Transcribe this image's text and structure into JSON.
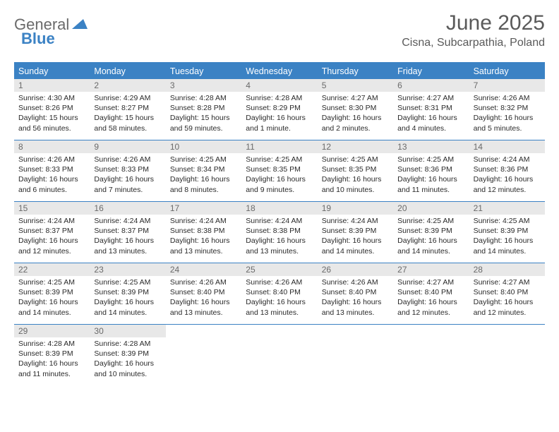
{
  "logo": {
    "general": "General",
    "blue": "Blue"
  },
  "title": "June 2025",
  "location": "Cisna, Subcarpathia, Poland",
  "colors": {
    "accent": "#3b82c4",
    "dow_bg": "#3b82c4",
    "dow_text": "#ffffff",
    "daynum_bg": "#e8e8e8",
    "daynum_text": "#6a6a6a",
    "body_text": "#2a2a2a",
    "title_text": "#5a5a5a",
    "logo_gray": "#6a6a6a",
    "background": "#ffffff"
  },
  "dow": [
    "Sunday",
    "Monday",
    "Tuesday",
    "Wednesday",
    "Thursday",
    "Friday",
    "Saturday"
  ],
  "weeks": [
    [
      {
        "n": "1",
        "sunrise": "Sunrise: 4:30 AM",
        "sunset": "Sunset: 8:26 PM",
        "daylight": "Daylight: 15 hours and 56 minutes."
      },
      {
        "n": "2",
        "sunrise": "Sunrise: 4:29 AM",
        "sunset": "Sunset: 8:27 PM",
        "daylight": "Daylight: 15 hours and 58 minutes."
      },
      {
        "n": "3",
        "sunrise": "Sunrise: 4:28 AM",
        "sunset": "Sunset: 8:28 PM",
        "daylight": "Daylight: 15 hours and 59 minutes."
      },
      {
        "n": "4",
        "sunrise": "Sunrise: 4:28 AM",
        "sunset": "Sunset: 8:29 PM",
        "daylight": "Daylight: 16 hours and 1 minute."
      },
      {
        "n": "5",
        "sunrise": "Sunrise: 4:27 AM",
        "sunset": "Sunset: 8:30 PM",
        "daylight": "Daylight: 16 hours and 2 minutes."
      },
      {
        "n": "6",
        "sunrise": "Sunrise: 4:27 AM",
        "sunset": "Sunset: 8:31 PM",
        "daylight": "Daylight: 16 hours and 4 minutes."
      },
      {
        "n": "7",
        "sunrise": "Sunrise: 4:26 AM",
        "sunset": "Sunset: 8:32 PM",
        "daylight": "Daylight: 16 hours and 5 minutes."
      }
    ],
    [
      {
        "n": "8",
        "sunrise": "Sunrise: 4:26 AM",
        "sunset": "Sunset: 8:33 PM",
        "daylight": "Daylight: 16 hours and 6 minutes."
      },
      {
        "n": "9",
        "sunrise": "Sunrise: 4:26 AM",
        "sunset": "Sunset: 8:33 PM",
        "daylight": "Daylight: 16 hours and 7 minutes."
      },
      {
        "n": "10",
        "sunrise": "Sunrise: 4:25 AM",
        "sunset": "Sunset: 8:34 PM",
        "daylight": "Daylight: 16 hours and 8 minutes."
      },
      {
        "n": "11",
        "sunrise": "Sunrise: 4:25 AM",
        "sunset": "Sunset: 8:35 PM",
        "daylight": "Daylight: 16 hours and 9 minutes."
      },
      {
        "n": "12",
        "sunrise": "Sunrise: 4:25 AM",
        "sunset": "Sunset: 8:35 PM",
        "daylight": "Daylight: 16 hours and 10 minutes."
      },
      {
        "n": "13",
        "sunrise": "Sunrise: 4:25 AM",
        "sunset": "Sunset: 8:36 PM",
        "daylight": "Daylight: 16 hours and 11 minutes."
      },
      {
        "n": "14",
        "sunrise": "Sunrise: 4:24 AM",
        "sunset": "Sunset: 8:36 PM",
        "daylight": "Daylight: 16 hours and 12 minutes."
      }
    ],
    [
      {
        "n": "15",
        "sunrise": "Sunrise: 4:24 AM",
        "sunset": "Sunset: 8:37 PM",
        "daylight": "Daylight: 16 hours and 12 minutes."
      },
      {
        "n": "16",
        "sunrise": "Sunrise: 4:24 AM",
        "sunset": "Sunset: 8:37 PM",
        "daylight": "Daylight: 16 hours and 13 minutes."
      },
      {
        "n": "17",
        "sunrise": "Sunrise: 4:24 AM",
        "sunset": "Sunset: 8:38 PM",
        "daylight": "Daylight: 16 hours and 13 minutes."
      },
      {
        "n": "18",
        "sunrise": "Sunrise: 4:24 AM",
        "sunset": "Sunset: 8:38 PM",
        "daylight": "Daylight: 16 hours and 13 minutes."
      },
      {
        "n": "19",
        "sunrise": "Sunrise: 4:24 AM",
        "sunset": "Sunset: 8:39 PM",
        "daylight": "Daylight: 16 hours and 14 minutes."
      },
      {
        "n": "20",
        "sunrise": "Sunrise: 4:25 AM",
        "sunset": "Sunset: 8:39 PM",
        "daylight": "Daylight: 16 hours and 14 minutes."
      },
      {
        "n": "21",
        "sunrise": "Sunrise: 4:25 AM",
        "sunset": "Sunset: 8:39 PM",
        "daylight": "Daylight: 16 hours and 14 minutes."
      }
    ],
    [
      {
        "n": "22",
        "sunrise": "Sunrise: 4:25 AM",
        "sunset": "Sunset: 8:39 PM",
        "daylight": "Daylight: 16 hours and 14 minutes."
      },
      {
        "n": "23",
        "sunrise": "Sunrise: 4:25 AM",
        "sunset": "Sunset: 8:39 PM",
        "daylight": "Daylight: 16 hours and 14 minutes."
      },
      {
        "n": "24",
        "sunrise": "Sunrise: 4:26 AM",
        "sunset": "Sunset: 8:40 PM",
        "daylight": "Daylight: 16 hours and 13 minutes."
      },
      {
        "n": "25",
        "sunrise": "Sunrise: 4:26 AM",
        "sunset": "Sunset: 8:40 PM",
        "daylight": "Daylight: 16 hours and 13 minutes."
      },
      {
        "n": "26",
        "sunrise": "Sunrise: 4:26 AM",
        "sunset": "Sunset: 8:40 PM",
        "daylight": "Daylight: 16 hours and 13 minutes."
      },
      {
        "n": "27",
        "sunrise": "Sunrise: 4:27 AM",
        "sunset": "Sunset: 8:40 PM",
        "daylight": "Daylight: 16 hours and 12 minutes."
      },
      {
        "n": "28",
        "sunrise": "Sunrise: 4:27 AM",
        "sunset": "Sunset: 8:40 PM",
        "daylight": "Daylight: 16 hours and 12 minutes."
      }
    ],
    [
      {
        "n": "29",
        "sunrise": "Sunrise: 4:28 AM",
        "sunset": "Sunset: 8:39 PM",
        "daylight": "Daylight: 16 hours and 11 minutes."
      },
      {
        "n": "30",
        "sunrise": "Sunrise: 4:28 AM",
        "sunset": "Sunset: 8:39 PM",
        "daylight": "Daylight: 16 hours and 10 minutes."
      },
      null,
      null,
      null,
      null,
      null
    ]
  ]
}
